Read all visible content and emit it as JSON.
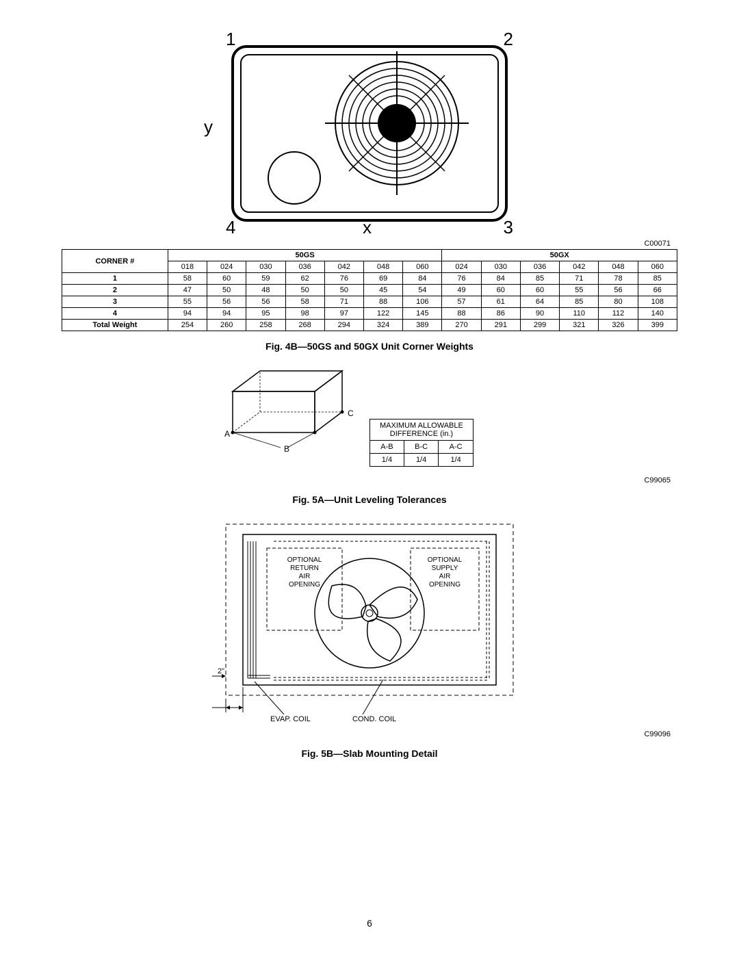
{
  "fig4b": {
    "corner_labels": {
      "tl": "1",
      "tr": "2",
      "br": "3",
      "bl": "4"
    },
    "axis_y": "y",
    "axis_x": "x",
    "code": "C00071"
  },
  "table": {
    "header_corner": "CORNER #",
    "group1": "50GS",
    "group2": "50GX",
    "cols1": [
      "018",
      "024",
      "030",
      "036",
      "042",
      "048",
      "060"
    ],
    "cols2": [
      "024",
      "030",
      "036",
      "042",
      "048",
      "060"
    ],
    "rows": [
      {
        "label": "1",
        "v": [
          "58",
          "60",
          "59",
          "62",
          "76",
          "69",
          "84",
          "76",
          "84",
          "85",
          "71",
          "78",
          "85"
        ]
      },
      {
        "label": "2",
        "v": [
          "47",
          "50",
          "48",
          "50",
          "50",
          "45",
          "54",
          "49",
          "60",
          "60",
          "55",
          "56",
          "66"
        ]
      },
      {
        "label": "3",
        "v": [
          "55",
          "56",
          "56",
          "58",
          "71",
          "88",
          "106",
          "57",
          "61",
          "64",
          "85",
          "80",
          "108"
        ]
      },
      {
        "label": "4",
        "v": [
          "94",
          "94",
          "95",
          "98",
          "97",
          "122",
          "145",
          "88",
          "86",
          "90",
          "110",
          "112",
          "140"
        ]
      }
    ],
    "total_label": "Total Weight",
    "total": [
      "254",
      "260",
      "258",
      "268",
      "294",
      "324",
      "389",
      "270",
      "291",
      "299",
      "321",
      "326",
      "399"
    ],
    "caption": "Fig. 4B—50GS and 50GX Unit Corner Weights"
  },
  "fig5a": {
    "labels": {
      "A": "A",
      "B": "B",
      "C": "C"
    },
    "tol_header": "MAXIMUM ALLOWABLE\nDIFFERENCE (in.)",
    "tol_cols": [
      "A-B",
      "B-C",
      "A-C"
    ],
    "tol_vals": [
      "1/4",
      "1/4",
      "1/4"
    ],
    "code": "C99065",
    "caption": "Fig. 5A—Unit Leveling Tolerances"
  },
  "fig5b": {
    "return_label": "OPTIONAL\nRETURN\nAIR\nOPENING",
    "supply_label": "OPTIONAL\nSUPPLY\nAIR\nOPENING",
    "evap": "EVAP. COIL",
    "cond": "COND. COIL",
    "dim": "2\"",
    "code": "C99096",
    "caption": "Fig. 5B—Slab Mounting Detail"
  },
  "page_number": "6"
}
